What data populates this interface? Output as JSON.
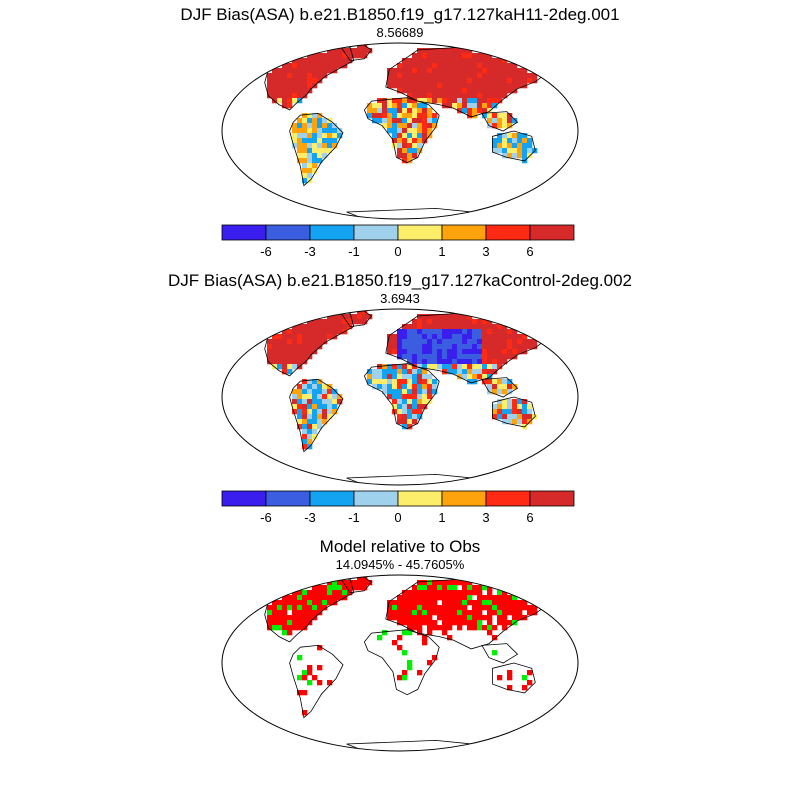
{
  "panels": [
    {
      "title": "DJF Bias(ASA) b.e21.B1850.f19_g17.127kaH11-2deg.001",
      "subtitle": "8.56689",
      "dominant": "warm"
    },
    {
      "title": "DJF Bias(ASA) b.e21.B1850.f19_g17.127kaControl-2deg.002",
      "subtitle": "3.6943",
      "dominant": "mixed"
    },
    {
      "title": "Model relative to Obs",
      "subtitle": "14.0945% - 45.7605%",
      "dominant": "categorical"
    }
  ],
  "colorbar": {
    "colors": [
      "#3a1eee",
      "#3b5ee0",
      "#14a3f0",
      "#9fd0ec",
      "#fcee6a",
      "#fea30b",
      "#fe2a14",
      "#d62a2a"
    ],
    "labels": [
      "-6",
      "-3",
      "-1",
      "0",
      "1",
      "3",
      "6"
    ]
  },
  "categorical_colors": {
    "primary": "#ff0000",
    "secondary": "#00ee00"
  }
}
